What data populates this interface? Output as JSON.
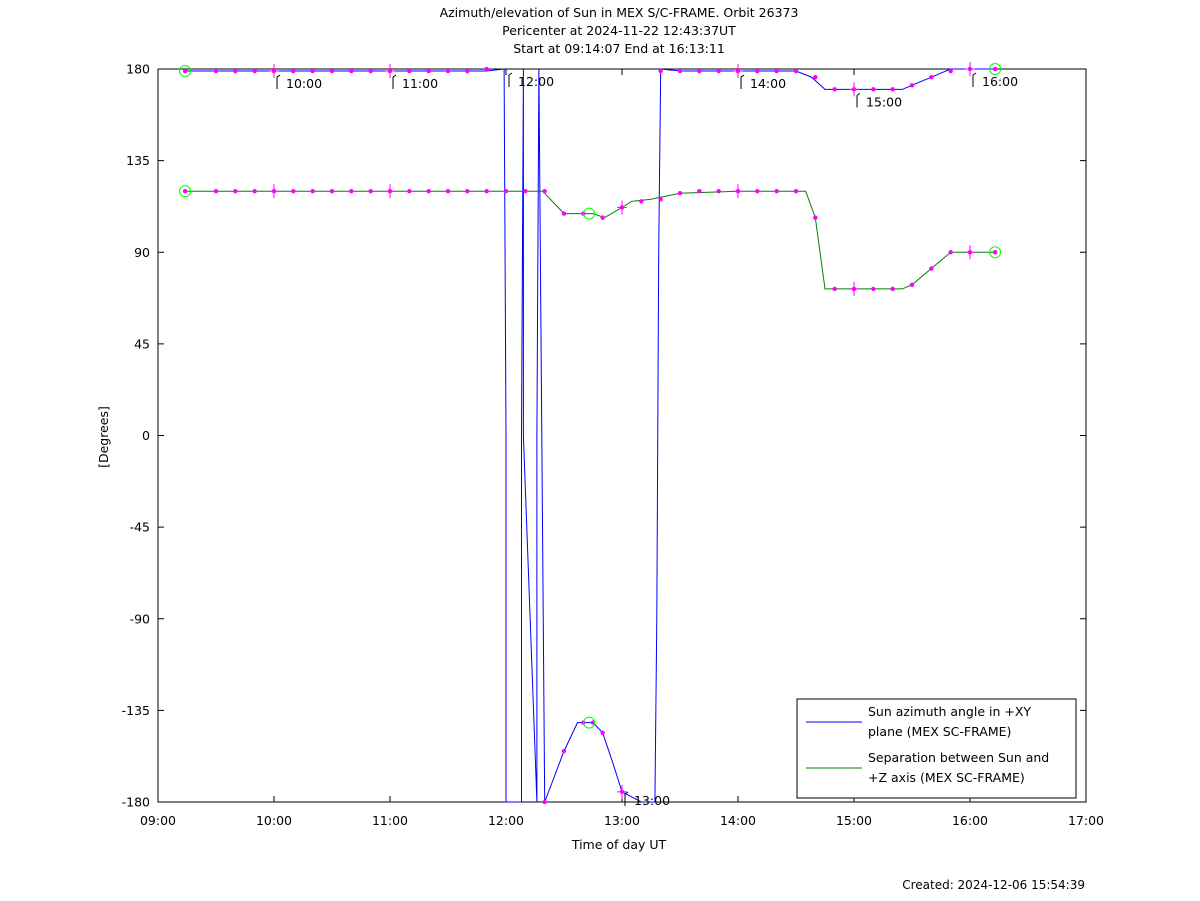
{
  "chart_data": {
    "type": "line",
    "title_lines": [
      "Azimuth/elevation of Sun in MEX S/C-FRAME.  Orbit 26373",
      "Pericenter at 2024-11-22 12:43:37UT",
      "Start at 09:14:07 End at 16:13:11"
    ],
    "xlabel": "Time of day UT",
    "ylabel": "[Degrees]",
    "xlim": [
      "09:00",
      "17:00"
    ],
    "ylim": [
      -180,
      180
    ],
    "x_ticks": [
      "09:00",
      "10:00",
      "11:00",
      "12:00",
      "13:00",
      "14:00",
      "15:00",
      "16:00",
      "17:00"
    ],
    "y_ticks": [
      180,
      135,
      90,
      45,
      0,
      -45,
      -90,
      -135,
      -180
    ],
    "grid": false,
    "legend_position": "bottom-right",
    "colors": {
      "azimuth": "#0000ff",
      "separation": "#008000",
      "markers": "#ff00ff",
      "endpoints": "#00ff00"
    },
    "series": [
      {
        "name": "Sun azimuth angle in +XY plane (MEX SC-FRAME)",
        "legend_lines": [
          "Sun azimuth angle in +XY",
          "plane (MEX SC-FRAME)"
        ],
        "x": [
          "09:14",
          "09:20",
          "09:40",
          "10:00",
          "10:40",
          "11:20",
          "11:50",
          "11:59",
          "12:00",
          "12:00",
          "12:08",
          "12:08",
          "12:09",
          "12:09",
          "12:16",
          "12:16",
          "12:17",
          "12:20",
          "12:30",
          "12:37",
          "12:45",
          "12:50",
          "12:55",
          "13:00",
          "13:10",
          "13:17",
          "13:18",
          "13:19",
          "13:20",
          "13:30",
          "14:00",
          "14:30",
          "14:38",
          "14:45",
          "15:00",
          "15:20",
          "15:25",
          "15:30",
          "15:45",
          "15:50",
          "16:00",
          "16:13"
        ],
        "values": [
          179,
          179,
          179,
          179,
          179,
          179,
          179,
          180,
          0,
          -180,
          -180,
          0,
          180,
          0,
          -180,
          0,
          180,
          -180,
          -155,
          -141,
          -141,
          -146,
          -160,
          -175,
          -180,
          -180,
          -90,
          90,
          180,
          179,
          179,
          179,
          176,
          170,
          170,
          170,
          170,
          172,
          178,
          180,
          180,
          180
        ]
      },
      {
        "name": "Separation between Sun and +Z axis (MEX SC-FRAME)",
        "legend_lines": [
          "Separation between Sun and",
          "+Z axis (MEX SC-FRAME)"
        ],
        "x": [
          "09:14",
          "10:00",
          "11:00",
          "12:00",
          "12:19",
          "12:30",
          "12:45",
          "12:51",
          "13:00",
          "13:05",
          "13:15",
          "13:30",
          "14:00",
          "14:35",
          "14:40",
          "14:45",
          "15:00",
          "15:25",
          "15:30",
          "15:40",
          "15:50",
          "16:00",
          "16:13"
        ],
        "values": [
          120,
          120,
          120,
          120,
          120,
          109,
          109,
          107,
          112,
          115,
          116,
          119,
          120,
          120,
          107,
          72,
          72,
          72,
          74,
          82,
          90,
          90,
          90
        ]
      }
    ],
    "markers": {
      "azimuth_x": [
        "09:14",
        "09:30",
        "09:40",
        "09:50",
        "10:00",
        "10:10",
        "10:20",
        "10:30",
        "10:40",
        "10:50",
        "11:00",
        "11:10",
        "11:20",
        "11:30",
        "11:40",
        "11:50",
        "12:20",
        "12:30",
        "12:40",
        "12:45",
        "12:50",
        "13:00",
        "13:20",
        "13:30",
        "13:40",
        "13:50",
        "14:00",
        "14:10",
        "14:20",
        "14:30",
        "14:40",
        "14:50",
        "15:00",
        "15:10",
        "15:20",
        "15:30",
        "15:40",
        "15:50",
        "16:00",
        "16:13"
      ],
      "azimuth_values": [
        179,
        179,
        179,
        179,
        179,
        179,
        179,
        179,
        179,
        179,
        179,
        179,
        179,
        179,
        179,
        180,
        -180,
        -155,
        -141,
        -141,
        -146,
        -175,
        179,
        179,
        179,
        179,
        179,
        179,
        179,
        179,
        176,
        170,
        170,
        170,
        170,
        172,
        176,
        179,
        180,
        180
      ],
      "separation_x": [
        "09:14",
        "09:30",
        "09:40",
        "09:50",
        "10:00",
        "10:10",
        "10:20",
        "10:30",
        "10:40",
        "10:50",
        "11:00",
        "11:10",
        "11:20",
        "11:30",
        "11:40",
        "11:50",
        "12:00",
        "12:10",
        "12:20",
        "12:30",
        "12:40",
        "12:50",
        "13:00",
        "13:10",
        "13:20",
        "13:30",
        "13:40",
        "13:50",
        "14:00",
        "14:10",
        "14:20",
        "14:30",
        "14:40",
        "14:50",
        "15:00",
        "15:10",
        "15:20",
        "15:30",
        "15:40",
        "15:50",
        "16:00",
        "16:13"
      ],
      "separation_values": [
        120,
        120,
        120,
        120,
        120,
        120,
        120,
        120,
        120,
        120,
        120,
        120,
        120,
        120,
        120,
        120,
        120,
        120,
        120,
        109,
        109,
        107,
        112,
        115,
        116,
        119,
        120,
        120,
        120,
        120,
        120,
        120,
        107,
        72,
        72,
        72,
        72,
        74,
        82,
        90,
        90,
        90
      ],
      "hour_crosses": [
        "10:00",
        "11:00",
        "13:00",
        "14:00",
        "15:00",
        "16:00"
      ],
      "endpoints": [
        "09:14",
        "12:43",
        "16:13"
      ]
    },
    "time_annotations": [
      {
        "label": "10:00",
        "x": "10:00",
        "y": 179
      },
      {
        "label": "11:00",
        "x": "11:00",
        "y": 179
      },
      {
        "label": "12:00",
        "x": "12:00",
        "y": 180
      },
      {
        "label": "13:00",
        "x": "13:00",
        "y": -180
      },
      {
        "label": "14:00",
        "x": "14:00",
        "y": 179
      },
      {
        "label": "15:00",
        "x": "15:00",
        "y": 170
      },
      {
        "label": "16:00",
        "x": "16:00",
        "y": 180
      }
    ]
  },
  "footer": {
    "created": "Created: 2024-12-06 15:54:39"
  }
}
